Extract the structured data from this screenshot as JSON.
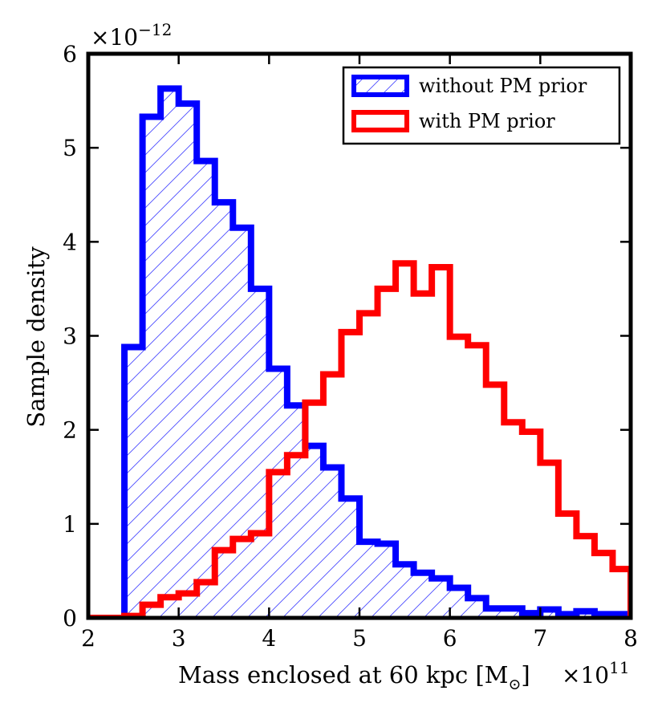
{
  "chart_data": {
    "type": "histogram",
    "title": "",
    "xlabel": "Mass enclosed at 60 kpc [M",
    "xlabel_subscript": "⊙",
    "xlabel_close": "]",
    "ylabel": "Sample density",
    "x_multiplier": {
      "base": "×10",
      "exp": "11"
    },
    "y_multiplier": {
      "base": "×10",
      "exp": "−12"
    },
    "xlim": [
      2,
      8
    ],
    "ylim": [
      0,
      6
    ],
    "xticks": [
      2,
      3,
      4,
      5,
      6,
      7,
      8
    ],
    "yticks": [
      0,
      1,
      2,
      3,
      4,
      5,
      6
    ],
    "grid": false,
    "legend_position": "top-right",
    "bin_edges": [
      2.0,
      2.2,
      2.4,
      2.6,
      2.8,
      3.0,
      3.2,
      3.4,
      3.6,
      3.8,
      4.0,
      4.2,
      4.4,
      4.6,
      4.8,
      5.0,
      5.2,
      5.4,
      5.6,
      5.8,
      6.0,
      6.2,
      6.4,
      6.6,
      6.8,
      7.0,
      7.2,
      7.4,
      7.6,
      7.8,
      8.0
    ],
    "series": [
      {
        "name": "without PM prior",
        "color": "#0000ff",
        "hatch": true,
        "values": [
          0,
          0,
          2.88,
          5.33,
          5.63,
          5.47,
          4.86,
          4.42,
          4.15,
          3.5,
          2.65,
          2.26,
          1.83,
          1.6,
          1.27,
          0.81,
          0.79,
          0.57,
          0.48,
          0.42,
          0.32,
          0.21,
          0.1,
          0.1,
          0.05,
          0.09,
          0.04,
          0.07,
          0.04,
          0.04
        ]
      },
      {
        "name": "with PM prior",
        "color": "#ff0000",
        "hatch": false,
        "values": [
          0,
          0,
          0.02,
          0.14,
          0.22,
          0.26,
          0.38,
          0.72,
          0.84,
          0.9,
          1.55,
          1.73,
          2.29,
          2.59,
          3.04,
          3.24,
          3.5,
          3.77,
          3.45,
          3.73,
          2.99,
          2.9,
          2.48,
          2.08,
          1.98,
          1.65,
          1.11,
          0.87,
          0.69,
          0.52
        ]
      }
    ]
  }
}
